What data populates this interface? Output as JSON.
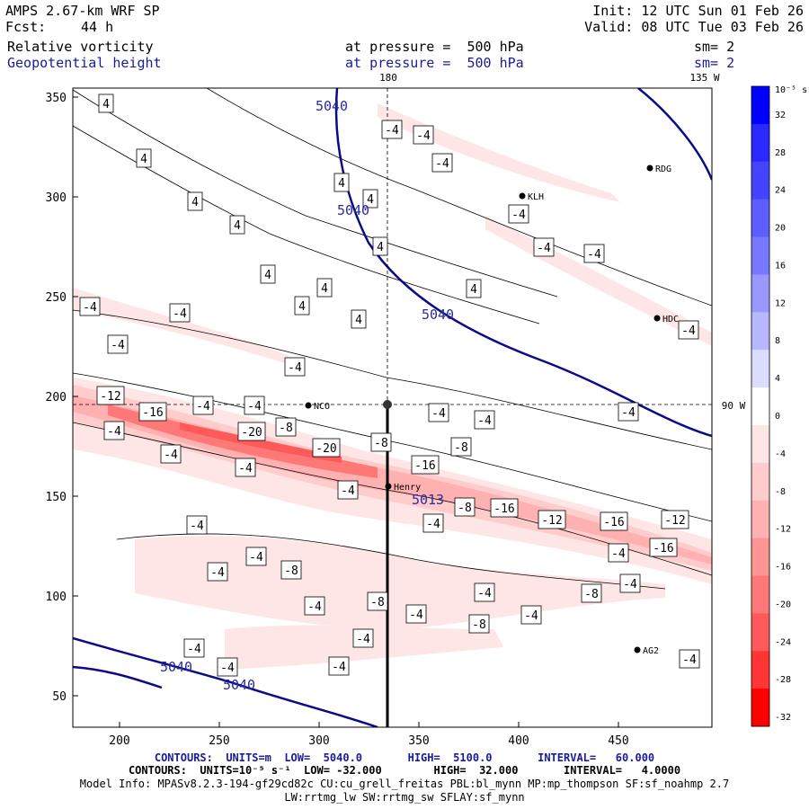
{
  "header": {
    "model": "AMPS 2.67-km WRF SP",
    "fcst_label": "Fcst:",
    "fcst_value": "44 h",
    "init": "Init: 12 UTC Sun 01 Feb 26",
    "valid": "Valid: 08 UTC Tue 03 Feb 26",
    "field1": "Relative vorticity",
    "field1_level": "at pressure =  500 hPa",
    "field1_sm": "sm= 2",
    "field2": "Geopotential height",
    "field2_level": "at pressure =  500 hPa",
    "field2_sm": "sm= 2"
  },
  "map": {
    "lon_top_label": "180",
    "lon_top_right": "135 W",
    "lon_right": "90 W",
    "x_ticks": [
      "200",
      "250",
      "300",
      "350",
      "400",
      "450"
    ],
    "y_ticks": [
      "50",
      "100",
      "150",
      "200",
      "250",
      "300",
      "350"
    ],
    "height_labels": [
      "5040",
      "5040",
      "5040",
      "5013",
      "5040",
      "5040"
    ],
    "stations": [
      "NCO",
      "Henry",
      "KLH",
      "RDG",
      "HDC",
      "AG2"
    ],
    "vort_labels": [
      "4",
      "4",
      "4",
      "4",
      "4",
      "4",
      "4",
      "4",
      "4",
      "4",
      "4",
      "4",
      "-4",
      "-4",
      "-4",
      "-4",
      "-4",
      "-4",
      "-4",
      "-4",
      "-4",
      "-4",
      "-4",
      "-4",
      "-4",
      "-4",
      "-4",
      "-4",
      "-4",
      "-4",
      "-4",
      "-4",
      "-4",
      "-4",
      "-4",
      "-4",
      "-4",
      "-4",
      "-4",
      "-4",
      "-4",
      "-4",
      "-4",
      "-4",
      "-4",
      "-4",
      "-4",
      "-8",
      "-8",
      "-8",
      "-8",
      "-8",
      "-8",
      "-8",
      "-8",
      "-12",
      "-12",
      "-12",
      "-16",
      "-16",
      "-16",
      "-16",
      "-16",
      "-20",
      "-20"
    ]
  },
  "colorbar": {
    "unit": "10⁻⁵ s⁻¹",
    "ticks": [
      "32",
      "28",
      "24",
      "20",
      "16",
      "12",
      "8",
      "4",
      "0",
      "-4",
      "-8",
      "-12",
      "-16",
      "-20",
      "-24",
      "-28",
      "-32"
    ],
    "colors": [
      "#0000ff",
      "#2a2aff",
      "#4444ff",
      "#5e5eff",
      "#7878ff",
      "#9898ff",
      "#b8b8ff",
      "#dcdcff",
      "#ffffff",
      "#ffe6e6",
      "#ffcccc",
      "#ffb0b0",
      "#ff9494",
      "#ff7878",
      "#ff5a5a",
      "#ff3434",
      "#ff0000"
    ]
  },
  "footer": {
    "line1": "CONTOURS:  UNITS=m  LOW=  5040.0       HIGH=  5100.0       INTERVAL=   60.000",
    "line2": "CONTOURS:  UNITS=10⁻⁵ s⁻¹  LOW= -32.000        HIGH=  32.000       INTERVAL=   4.0000",
    "line3": "Model Info: MPASv8.2.3-194-gf29cd82c CU:cu_grell_freitas PBL:bl_mynn MP:mp_thompson SF:sf_noahmp 2.7",
    "line4": "LW:rrtmg_lw SW:rrtmg_sw SFLAY:sf_mynn"
  }
}
